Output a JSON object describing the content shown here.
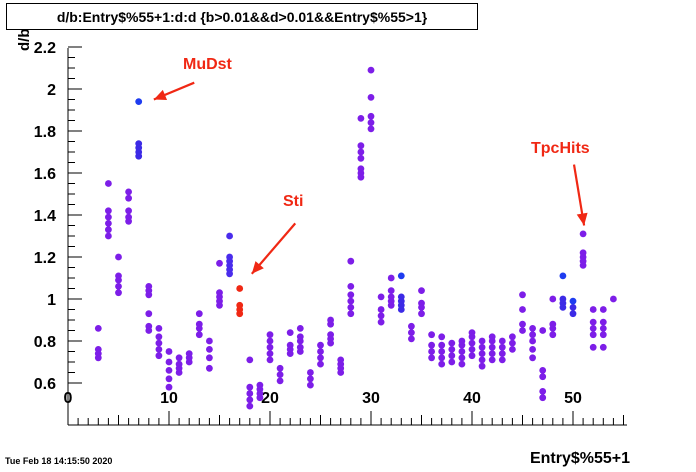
{
  "title": "d/b:Entry$%55+1:d:d {b>0.01&&d>0.01&&Entry$%55>1}",
  "timestamp": "Tue Feb 18 14:15:50 2020",
  "xlabel": "Entry$%55+1",
  "ylabel": "d/b",
  "chart_data": {
    "type": "scatter",
    "title": "d/b:Entry$%55+1:d:d {b>0.01&&d>0.01&&Entry$%55>1}",
    "xlabel": "Entry$%55+1",
    "ylabel": "d/b",
    "xlim": [
      -0.5,
      55.5
    ],
    "ylim": [
      0.4,
      2.2
    ],
    "yticks": [
      0.6,
      0.8,
      1.0,
      1.2,
      1.4,
      1.6,
      1.8,
      2.0,
      2.2
    ],
    "ytick_labels": [
      "0.6",
      "0.8",
      "1",
      "1.2",
      "1.4",
      "1.6",
      "1.8",
      "2",
      "2.2"
    ],
    "xticks": [
      0,
      10,
      20,
      30,
      40,
      50
    ],
    "color_scale": {
      "low": "#7d1ee8",
      "high": "#1e3cf0",
      "accent": "#f02814"
    },
    "points": [
      {
        "x": 3,
        "ys": [
          0.72,
          0.74,
          0.76,
          0.86
        ]
      },
      {
        "x": 4,
        "ys": [
          1.3,
          1.33,
          1.36,
          1.39,
          1.42,
          1.55
        ]
      },
      {
        "x": 5,
        "ys": [
          1.03,
          1.06,
          1.09,
          1.11,
          1.2
        ]
      },
      {
        "x": 6,
        "ys": [
          1.37,
          1.39,
          1.42,
          1.48,
          1.51
        ]
      },
      {
        "x": 7,
        "ys": [
          1.68,
          1.7,
          1.72,
          1.74,
          1.94
        ],
        "tone": "high"
      },
      {
        "x": 8,
        "ys": [
          0.85,
          0.87,
          0.93,
          1.02,
          1.04,
          1.06
        ]
      },
      {
        "x": 9,
        "ys": [
          0.73,
          0.76,
          0.79,
          0.82,
          0.86
        ]
      },
      {
        "x": 10,
        "ys": [
          0.58,
          0.62,
          0.66,
          0.7,
          0.75
        ]
      },
      {
        "x": 11,
        "ys": [
          0.65,
          0.67,
          0.69,
          0.72
        ]
      },
      {
        "x": 12,
        "ys": [
          0.7,
          0.72,
          0.74
        ]
      },
      {
        "x": 13,
        "ys": [
          0.83,
          0.86,
          0.88,
          0.93
        ]
      },
      {
        "x": 14,
        "ys": [
          0.67,
          0.72,
          0.76,
          0.8
        ]
      },
      {
        "x": 15,
        "ys": [
          0.97,
          0.99,
          1.01,
          1.03,
          1.17
        ]
      },
      {
        "x": 16,
        "ys": [
          1.12,
          1.14,
          1.16,
          1.18,
          1.2,
          1.3
        ],
        "tone": "mid"
      },
      {
        "x": 17,
        "ys": [
          0.93,
          0.95,
          0.97,
          1.05
        ],
        "tone": "accent"
      },
      {
        "x": 18,
        "ys": [
          0.49,
          0.52,
          0.55,
          0.58,
          0.71
        ]
      },
      {
        "x": 19,
        "ys": [
          0.53,
          0.55,
          0.57,
          0.59
        ]
      },
      {
        "x": 20,
        "ys": [
          0.71,
          0.74,
          0.77,
          0.8,
          0.83
        ]
      },
      {
        "x": 21,
        "ys": [
          0.61,
          0.64,
          0.67
        ]
      },
      {
        "x": 22,
        "ys": [
          0.74,
          0.76,
          0.78,
          0.84
        ]
      },
      {
        "x": 23,
        "ys": [
          0.75,
          0.77,
          0.8,
          0.82,
          0.86
        ]
      },
      {
        "x": 24,
        "ys": [
          0.59,
          0.62,
          0.65
        ]
      },
      {
        "x": 25,
        "ys": [
          0.69,
          0.72,
          0.75,
          0.78
        ]
      },
      {
        "x": 26,
        "ys": [
          0.79,
          0.81,
          0.83,
          0.88,
          0.9
        ]
      },
      {
        "x": 27,
        "ys": [
          0.65,
          0.67,
          0.69,
          0.71
        ]
      },
      {
        "x": 28,
        "ys": [
          0.93,
          0.96,
          0.99,
          1.02,
          1.06,
          1.18
        ]
      },
      {
        "x": 29,
        "ys": [
          1.58,
          1.6,
          1.62,
          1.67,
          1.7,
          1.73,
          1.86
        ]
      },
      {
        "x": 30,
        "ys": [
          1.81,
          1.84,
          1.87,
          1.96,
          2.09
        ]
      },
      {
        "x": 31,
        "ys": [
          0.89,
          0.92,
          0.95,
          1.01
        ]
      },
      {
        "x": 32,
        "ys": [
          0.97,
          0.99,
          1.01,
          1.04,
          1.1
        ]
      },
      {
        "x": 33,
        "ys": [
          0.95,
          0.97,
          0.99,
          1.01,
          1.11
        ],
        "tone": "high"
      },
      {
        "x": 34,
        "ys": [
          0.81,
          0.84,
          0.87
        ]
      },
      {
        "x": 35,
        "ys": [
          0.93,
          0.96,
          0.98,
          1.04
        ]
      },
      {
        "x": 36,
        "ys": [
          0.72,
          0.75,
          0.78,
          0.83
        ]
      },
      {
        "x": 37,
        "ys": [
          0.69,
          0.72,
          0.75,
          0.78,
          0.82
        ]
      },
      {
        "x": 38,
        "ys": [
          0.7,
          0.73,
          0.76,
          0.79
        ]
      },
      {
        "x": 39,
        "ys": [
          0.69,
          0.72,
          0.75,
          0.78,
          0.8
        ]
      },
      {
        "x": 40,
        "ys": [
          0.73,
          0.76,
          0.79,
          0.82,
          0.84
        ]
      },
      {
        "x": 41,
        "ys": [
          0.68,
          0.71,
          0.74,
          0.77,
          0.8
        ]
      },
      {
        "x": 42,
        "ys": [
          0.71,
          0.74,
          0.77,
          0.8,
          0.82
        ]
      },
      {
        "x": 43,
        "ys": [
          0.71,
          0.74,
          0.77,
          0.8
        ]
      },
      {
        "x": 44,
        "ys": [
          0.76,
          0.79,
          0.82
        ]
      },
      {
        "x": 45,
        "ys": [
          0.85,
          0.88,
          0.95,
          1.02
        ]
      },
      {
        "x": 46,
        "ys": [
          0.72,
          0.76,
          0.8,
          0.83,
          0.86
        ]
      },
      {
        "x": 47,
        "ys": [
          0.53,
          0.56,
          0.63,
          0.66,
          0.85
        ]
      },
      {
        "x": 48,
        "ys": [
          0.83,
          0.86,
          0.88,
          1.0
        ]
      },
      {
        "x": 49,
        "ys": [
          0.96,
          0.98,
          1.0,
          1.11
        ],
        "tone": "high"
      },
      {
        "x": 50,
        "ys": [
          0.93,
          0.96,
          0.99
        ],
        "tone": "high"
      },
      {
        "x": 51,
        "ys": [
          1.16,
          1.18,
          1.2,
          1.22,
          1.31
        ]
      },
      {
        "x": 52,
        "ys": [
          0.77,
          0.83,
          0.86,
          0.89,
          0.95
        ]
      },
      {
        "x": 53,
        "ys": [
          0.77,
          0.83,
          0.86,
          0.89,
          0.95
        ]
      },
      {
        "x": 54,
        "ys": [
          1.0
        ]
      }
    ],
    "annotations": [
      {
        "text": "MuDst",
        "x_from": 12.5,
        "y_from": 2.03,
        "x_to": 8.5,
        "y_to": 1.95
      },
      {
        "text": "Sti",
        "x_from": 22.5,
        "y_from": 1.36,
        "x_to": 18.2,
        "y_to": 1.12
      },
      {
        "text": "TpcHits",
        "x_from": 50.1,
        "y_from": 1.64,
        "x_to": 51.1,
        "y_to": 1.35
      }
    ]
  }
}
